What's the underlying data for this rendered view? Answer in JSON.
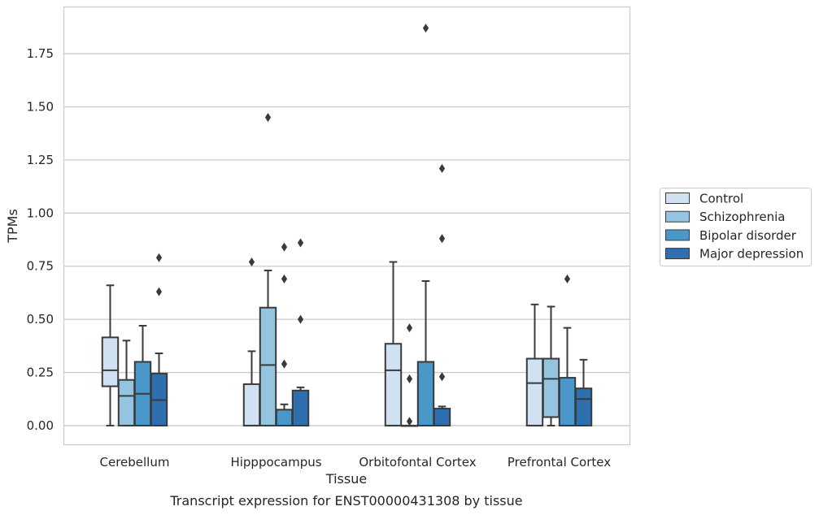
{
  "chart_data": {
    "type": "box",
    "title": "Transcript expression for ENST00000431308 by tissue",
    "xlabel": "Tissue",
    "ylabel": "TPMs",
    "ylim": [
      -0.09,
      1.97
    ],
    "yticks": [
      0.0,
      0.25,
      0.5,
      0.75,
      1.0,
      1.25,
      1.5,
      1.75
    ],
    "ytick_labels": [
      "0.00",
      "0.25",
      "0.50",
      "0.75",
      "1.00",
      "1.25",
      "1.50",
      "1.75"
    ],
    "grid": true,
    "legend_position": "right",
    "categories": [
      "Cerebellum",
      "Hipppocampus",
      "Orbitofontal Cortex",
      "Prefrontal Cortex"
    ],
    "series": [
      {
        "name": "Control",
        "color": "#d0e1f2",
        "boxes": [
          {
            "whislo": 0.0,
            "q1": 0.185,
            "med": 0.26,
            "q3": 0.415,
            "whishi": 0.66,
            "fliers": []
          },
          {
            "whislo": 0.0,
            "q1": 0.0,
            "med": 0.0,
            "q3": 0.195,
            "whishi": 0.35,
            "fliers": [
              0.77
            ]
          },
          {
            "whislo": 0.0,
            "q1": 0.0,
            "med": 0.26,
            "q3": 0.385,
            "whishi": 0.77,
            "fliers": []
          },
          {
            "whislo": 0.0,
            "q1": 0.0,
            "med": 0.2,
            "q3": 0.315,
            "whishi": 0.57,
            "fliers": []
          }
        ]
      },
      {
        "name": "Schizophrenia",
        "color": "#94c4df",
        "boxes": [
          {
            "whislo": 0.0,
            "q1": 0.0,
            "med": 0.14,
            "q3": 0.215,
            "whishi": 0.4,
            "fliers": []
          },
          {
            "whislo": 0.0,
            "q1": 0.0,
            "med": 0.285,
            "q3": 0.555,
            "whishi": 0.73,
            "fliers": [
              1.45
            ]
          },
          {
            "whislo": 0.0,
            "q1": 0.0,
            "med": 0.0,
            "q3": 0.0,
            "whishi": 0.0,
            "fliers": [
              0.02,
              0.22,
              0.46
            ]
          },
          {
            "whislo": 0.0,
            "q1": 0.04,
            "med": 0.22,
            "q3": 0.315,
            "whishi": 0.56,
            "fliers": []
          }
        ]
      },
      {
        "name": "Bipolar disorder",
        "color": "#4a98c9",
        "boxes": [
          {
            "whislo": 0.0,
            "q1": 0.0,
            "med": 0.15,
            "q3": 0.3,
            "whishi": 0.47,
            "fliers": []
          },
          {
            "whislo": 0.0,
            "q1": 0.0,
            "med": 0.0,
            "q3": 0.075,
            "whishi": 0.1,
            "fliers": [
              0.29,
              0.69,
              0.84
            ]
          },
          {
            "whislo": 0.0,
            "q1": 0.0,
            "med": 0.0,
            "q3": 0.3,
            "whishi": 0.68,
            "fliers": [
              1.87
            ]
          },
          {
            "whislo": 0.0,
            "q1": 0.0,
            "med": 0.0,
            "q3": 0.225,
            "whishi": 0.46,
            "fliers": [
              0.69
            ]
          }
        ]
      },
      {
        "name": "Major depression",
        "color": "#2e6faf",
        "boxes": [
          {
            "whislo": 0.0,
            "q1": 0.0,
            "med": 0.12,
            "q3": 0.245,
            "whishi": 0.34,
            "fliers": [
              0.63,
              0.79
            ]
          },
          {
            "whislo": 0.0,
            "q1": 0.0,
            "med": 0.0,
            "q3": 0.165,
            "whishi": 0.18,
            "fliers": [
              0.5,
              0.86
            ]
          },
          {
            "whislo": 0.0,
            "q1": 0.0,
            "med": 0.0,
            "q3": 0.08,
            "whishi": 0.09,
            "fliers": [
              0.23,
              0.88,
              1.21
            ]
          },
          {
            "whislo": 0.0,
            "q1": 0.0,
            "med": 0.125,
            "q3": 0.175,
            "whishi": 0.31,
            "fliers": []
          }
        ]
      }
    ]
  }
}
